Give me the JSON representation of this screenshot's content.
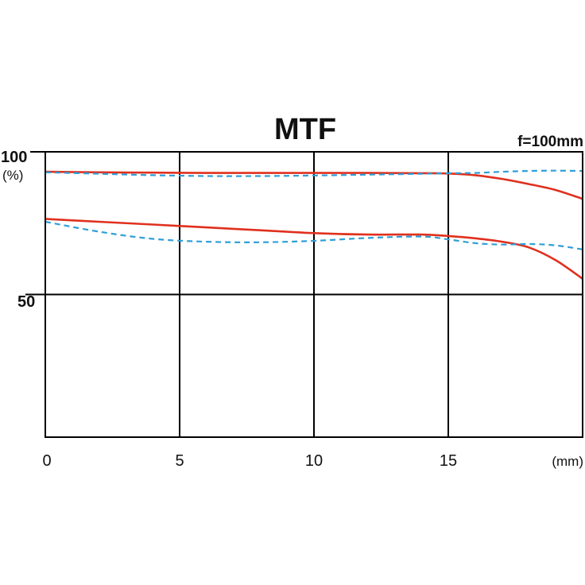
{
  "chart_data": {
    "type": "line",
    "title": "MTF",
    "subtitle": "f=100mm",
    "xlabel": "(mm)",
    "ylabel": "(%)",
    "xlim": [
      0,
      20
    ],
    "ylim": [
      0,
      100
    ],
    "x_ticks": [
      "0",
      "5",
      "10",
      "15"
    ],
    "y_ticks": [
      "100",
      "50"
    ],
    "grid": true,
    "series": [
      {
        "style": "solid",
        "color": "#e0301e",
        "x": [
          0,
          2,
          4,
          6,
          8,
          10,
          12,
          14,
          15,
          16,
          17,
          18,
          19,
          20
        ],
        "y": [
          93,
          92.8,
          92.7,
          92.6,
          92.6,
          92.6,
          92.6,
          92.5,
          92.4,
          91.8,
          90.5,
          88.7,
          86.6,
          83.5
        ]
      },
      {
        "style": "dashed",
        "color": "#2f9fd8",
        "x": [
          0,
          2,
          4,
          6,
          8,
          10,
          12,
          14,
          15,
          16,
          17,
          18,
          19,
          20
        ],
        "y": [
          92.8,
          92.3,
          91.8,
          91.5,
          91.5,
          91.7,
          92,
          92.3,
          92.5,
          92.6,
          93,
          93.3,
          93.4,
          93.3
        ]
      },
      {
        "style": "solid",
        "color": "#e0301e",
        "x": [
          0,
          2,
          4,
          6,
          8,
          10,
          12,
          14,
          15,
          16,
          17,
          18,
          19,
          20
        ],
        "y": [
          76.5,
          75.5,
          74.5,
          73.5,
          72.5,
          71.5,
          71,
          71,
          70.5,
          69.7,
          68.5,
          66.5,
          62,
          55.5
        ]
      },
      {
        "style": "dashed",
        "color": "#2f9fd8",
        "x": [
          0,
          2,
          4,
          6,
          8,
          10,
          12,
          14,
          15,
          16,
          17,
          18,
          19,
          20
        ],
        "y": [
          75.5,
          72,
          69.5,
          68.5,
          68.3,
          68.8,
          69.8,
          70.3,
          69.3,
          68,
          67.5,
          67.7,
          67.2,
          65.8
        ]
      }
    ]
  }
}
